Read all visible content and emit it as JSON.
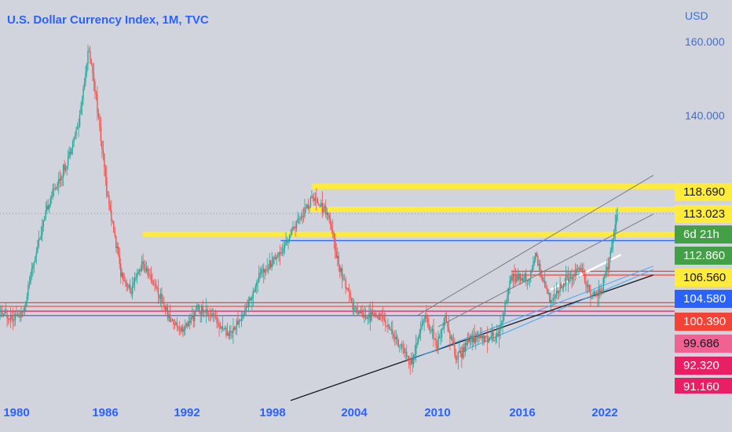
{
  "chart_data": {
    "type": "candlestick",
    "title": "U.S. Dollar Currency Index, 1M, TVC",
    "currency": "USD",
    "x_ticks": [
      "1980",
      "1986",
      "1992",
      "1998",
      "2004",
      "2010",
      "2016",
      "2022"
    ],
    "y_ticks": [
      "160.000",
      "140.000"
    ],
    "price_tags": [
      {
        "label": "118.690",
        "bg": "#ffeb3b",
        "fg": "#131722"
      },
      {
        "label": "113.023",
        "bg": "#ffeb3b",
        "fg": "#131722"
      },
      {
        "label": "6d 21h",
        "bg": "#43a047",
        "fg": "#ffffff"
      },
      {
        "label": "112.860",
        "bg": "#43a047",
        "fg": "#ffffff"
      },
      {
        "label": "106.560",
        "bg": "#ffeb3b",
        "fg": "#131722"
      },
      {
        "label": "104.580",
        "bg": "#2962ff",
        "fg": "#ffffff"
      },
      {
        "label": "100.390",
        "bg": "#f44336",
        "fg": "#ffffff"
      },
      {
        "label": "99.686",
        "bg": "#f06292",
        "fg": "#131722"
      },
      {
        "label": "92.320",
        "bg": "#e91e63",
        "fg": "#ffffff"
      },
      {
        "label": "91.160",
        "bg": "#e91e63",
        "fg": "#ffffff"
      }
    ],
    "price_path": [
      [
        1978.0,
        87
      ],
      [
        1979.5,
        86
      ],
      [
        1980.5,
        86
      ],
      [
        1981.5,
        104
      ],
      [
        1982.5,
        118
      ],
      [
        1983.5,
        126
      ],
      [
        1984.5,
        138
      ],
      [
        1985.2,
        158
      ],
      [
        1985.6,
        150
      ],
      [
        1986.5,
        120
      ],
      [
        1987.5,
        98
      ],
      [
        1988.2,
        92
      ],
      [
        1989.0,
        100
      ],
      [
        1990.0,
        94
      ],
      [
        1991.0,
        85
      ],
      [
        1992.0,
        82
      ],
      [
        1993.0,
        88
      ],
      [
        1994.0,
        86
      ],
      [
        1995.2,
        81
      ],
      [
        1996.2,
        86
      ],
      [
        1997.5,
        98
      ],
      [
        1999.0,
        104
      ],
      [
        2000.2,
        112
      ],
      [
        2001.2,
        118
      ],
      [
        2002.2,
        114
      ],
      [
        2003.0,
        100
      ],
      [
        2004.0,
        88
      ],
      [
        2005.0,
        86
      ],
      [
        2006.0,
        86
      ],
      [
        2007.0,
        80
      ],
      [
        2008.2,
        73
      ],
      [
        2009.1,
        86
      ],
      [
        2010.0,
        78
      ],
      [
        2010.6,
        86
      ],
      [
        2011.4,
        74
      ],
      [
        2012.4,
        80
      ],
      [
        2013.5,
        80
      ],
      [
        2014.4,
        81
      ],
      [
        2015.2,
        96
      ],
      [
        2016.5,
        96
      ],
      [
        2017.0,
        102
      ],
      [
        2018.1,
        89
      ],
      [
        2019.0,
        95
      ],
      [
        2020.2,
        99
      ],
      [
        2021.0,
        91
      ],
      [
        2021.6,
        92
      ],
      [
        2022.2,
        100
      ],
      [
        2022.75,
        113
      ]
    ],
    "horizontal_levels": [
      {
        "price": 121.0,
        "from": 2001.0,
        "color": "#ffeb3b"
      },
      {
        "price": 114.8,
        "from": 2000.8,
        "color": "#ffeb3b"
      },
      {
        "price": 108.0,
        "from": 1989.0,
        "color": "#ffeb3b"
      },
      {
        "price": 106.3,
        "from": 1998.8,
        "color": "#2962ff"
      },
      {
        "price": 98.0,
        "from": 2015.2,
        "color": "#f44336"
      },
      {
        "price": 97.0,
        "from": 2015.2,
        "color": "#f44336"
      },
      {
        "price": 89.5,
        "from": 1977.6,
        "color": "#f44336"
      },
      {
        "price": 88.5,
        "from": 1977.6,
        "color": "#f44336"
      },
      {
        "price": 87.2,
        "from": 1977.6,
        "color": "#e91e63"
      },
      {
        "price": 86.0,
        "from": 1977.6,
        "color": "#5c4ec8"
      }
    ],
    "trendlines": [
      {
        "from": [
          1999.5,
          63
        ],
        "to": [
          2025.3,
          97
        ],
        "color": "#131722",
        "width": 1.3
      },
      {
        "from": [
          2008.0,
          74
        ],
        "to": [
          2025.3,
          99.4
        ],
        "color": "#42a5f5",
        "width": 1
      },
      {
        "from": [
          2011.5,
          76
        ],
        "to": [
          2025.3,
          98.5
        ],
        "color": "#42a5f5",
        "width": 1
      },
      {
        "from": [
          2008.5,
          86
        ],
        "to": [
          2025.3,
          124
        ],
        "color": "#787b86",
        "width": 1
      },
      {
        "from": [
          2010.0,
          83
        ],
        "to": [
          2025.3,
          113.5
        ],
        "color": "#787b86",
        "width": 1
      },
      {
        "from": [
          2018.0,
          93
        ],
        "to": [
          2023.0,
          102.5
        ],
        "color": "#ffffff",
        "width": 2.5
      }
    ]
  }
}
